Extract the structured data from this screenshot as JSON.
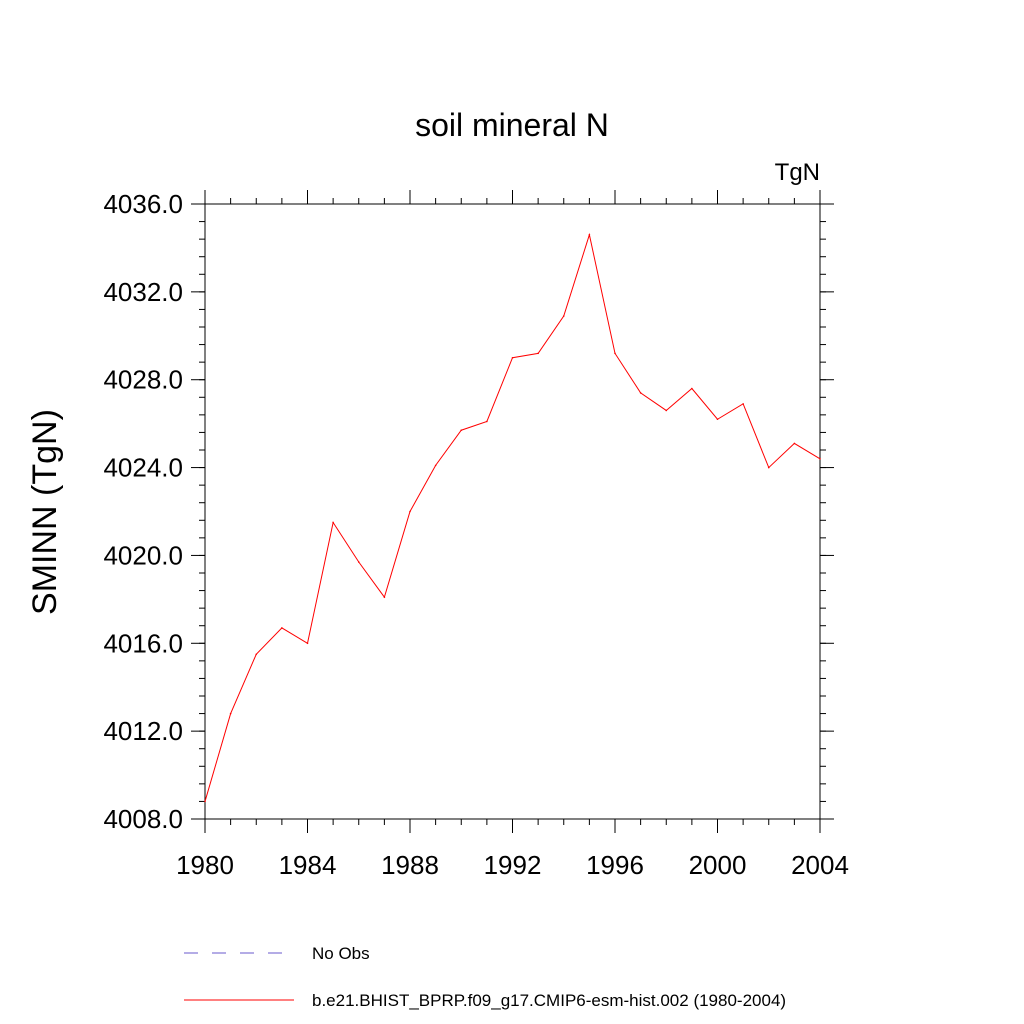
{
  "chart_data": {
    "type": "line",
    "title": "soil mineral N",
    "units_label": "TgN",
    "ylabel": "SMINN  (TgN)",
    "xlabel": "",
    "xlim": [
      1980,
      2004
    ],
    "ylim": [
      4008.0,
      4036.0
    ],
    "x_ticks": [
      1980,
      1984,
      1988,
      1992,
      1996,
      2000,
      2004
    ],
    "x_tick_labels": [
      "1980",
      "1984",
      "1988",
      "1992",
      "1996",
      "2000",
      "2004"
    ],
    "y_ticks": [
      4008.0,
      4012.0,
      4016.0,
      4020.0,
      4024.0,
      4028.0,
      4032.0,
      4036.0
    ],
    "y_tick_labels": [
      "4008.0",
      "4012.0",
      "4016.0",
      "4020.0",
      "4024.0",
      "4028.0",
      "4032.0",
      "4036.0"
    ],
    "grid": false,
    "legend_position": "bottom",
    "series": [
      {
        "name": "b.e21.BHIST_BPRP.f09_g17.CMIP6-esm-hist.002 (1980-2004)",
        "color": "#ff0000",
        "style": "solid",
        "x": [
          1980,
          1981,
          1982,
          1983,
          1984,
          1985,
          1986,
          1987,
          1988,
          1989,
          1990,
          1991,
          1992,
          1993,
          1994,
          1995,
          1996,
          1997,
          1998,
          1999,
          2000,
          2001,
          2002,
          2003,
          2004
        ],
        "values": [
          4008.8,
          4012.8,
          4015.5,
          4016.7,
          4016.0,
          4021.5,
          4019.7,
          4018.1,
          4022.0,
          4024.1,
          4025.7,
          4026.1,
          4029.0,
          4029.2,
          4030.9,
          4034.6,
          4029.2,
          4027.4,
          4026.6,
          4027.6,
          4026.2,
          4026.9,
          4024.0,
          4025.1,
          4024.4
        ]
      }
    ],
    "legend": [
      {
        "label": "No Obs",
        "color": "#6a5acd",
        "style": "dashed"
      },
      {
        "label": "b.e21.BHIST_BPRP.f09_g17.CMIP6-esm-hist.002 (1980-2004)",
        "color": "#ff0000",
        "style": "solid"
      }
    ]
  }
}
